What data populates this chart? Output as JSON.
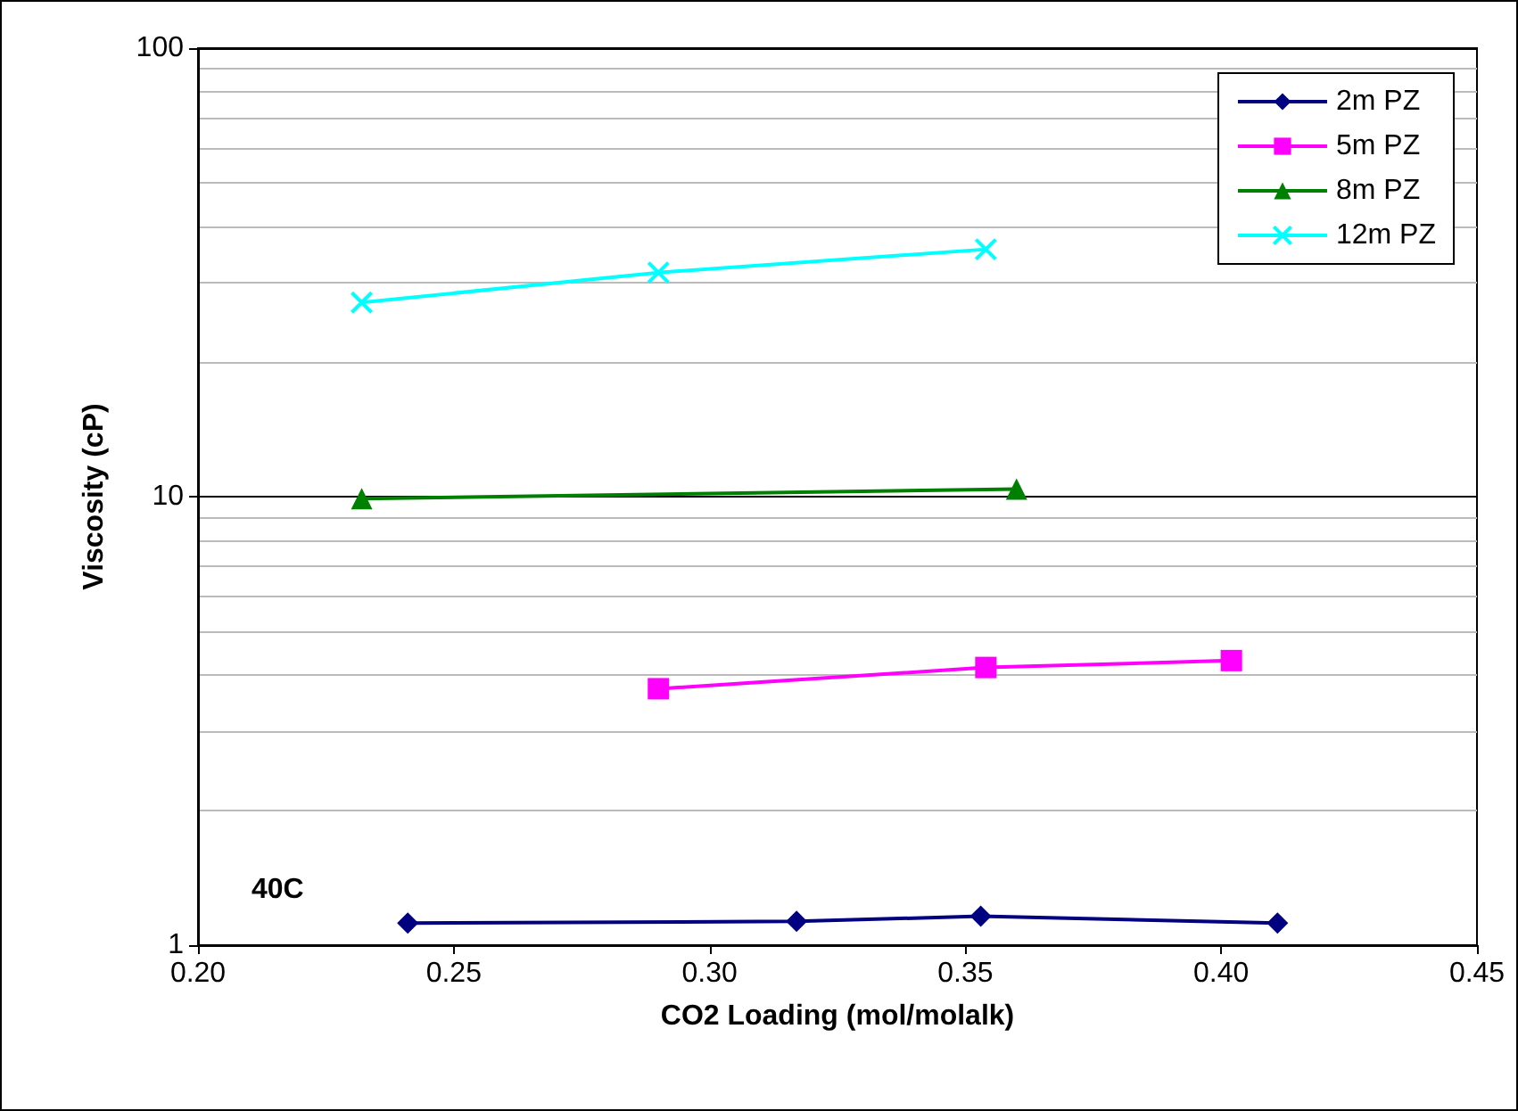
{
  "chart_data": {
    "type": "line",
    "xlabel": "CO2 Loading (mol/molalk)",
    "ylabel": "Viscosity (cP)",
    "annotations": [
      "40C"
    ],
    "xlim": [
      0.2,
      0.45
    ],
    "xticks": [
      {
        "value": 0.2,
        "label": "0.20"
      },
      {
        "value": 0.25,
        "label": "0.25"
      },
      {
        "value": 0.3,
        "label": "0.30"
      },
      {
        "value": 0.35,
        "label": "0.35"
      },
      {
        "value": 0.4,
        "label": "0.40"
      },
      {
        "value": 0.45,
        "label": "0.45"
      }
    ],
    "ylim": [
      1,
      100
    ],
    "yticks": [
      1,
      10,
      100
    ],
    "log": "y",
    "grid": "y",
    "legend": "top right",
    "series": [
      {
        "name": "2m PZ",
        "color": "#000080",
        "marker": "diamond",
        "x": [
          0.241,
          0.317,
          0.353,
          0.411
        ],
        "values": [
          1.12,
          1.13,
          1.16,
          1.12
        ]
      },
      {
        "name": "5m PZ",
        "color": "#ff00ff",
        "marker": "square",
        "x": [
          0.29,
          0.354,
          0.402
        ],
        "values": [
          3.73,
          4.16,
          4.31
        ]
      },
      {
        "name": "8m PZ",
        "color": "#008000",
        "marker": "triangle",
        "x": [
          0.232,
          0.36
        ],
        "values": [
          9.9,
          10.4
        ]
      },
      {
        "name": "12m PZ",
        "color": "#00ffff",
        "marker": "cross",
        "x": [
          0.232,
          0.29,
          0.354
        ],
        "values": [
          27.1,
          31.6,
          35.6
        ]
      }
    ]
  }
}
